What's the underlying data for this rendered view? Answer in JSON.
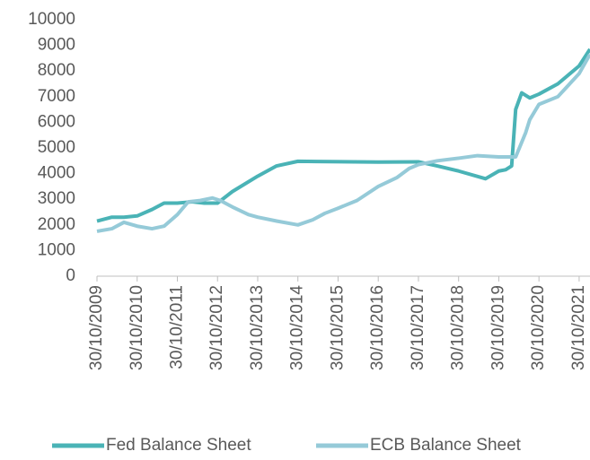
{
  "chart_data": {
    "type": "line",
    "xlim": [
      2009.83,
      2022.1
    ],
    "xticks": [
      {
        "value": 2009.83,
        "label": "30/10/2009"
      },
      {
        "value": 2010.83,
        "label": "30/10/2010"
      },
      {
        "value": 2011.83,
        "label": "30/10/2011"
      },
      {
        "value": 2012.83,
        "label": "30/10/2012"
      },
      {
        "value": 2013.83,
        "label": "30/10/2013"
      },
      {
        "value": 2014.83,
        "label": "30/10/2014"
      },
      {
        "value": 2015.83,
        "label": "30/10/2015"
      },
      {
        "value": 2016.83,
        "label": "30/10/2016"
      },
      {
        "value": 2017.83,
        "label": "30/10/2017"
      },
      {
        "value": 2018.83,
        "label": "30/10/2018"
      },
      {
        "value": 2019.83,
        "label": "30/10/2019"
      },
      {
        "value": 2020.83,
        "label": "30/10/2020"
      },
      {
        "value": 2021.83,
        "label": "30/10/2021"
      }
    ],
    "ylim": [
      0,
      10000
    ],
    "yticks": [
      0,
      1000,
      2000,
      3000,
      4000,
      5000,
      6000,
      7000,
      8000,
      9000,
      10000
    ],
    "legend": "bottom",
    "series": [
      {
        "name": "Fed Balance Sheet",
        "color": "#4ab3b6",
        "x": [
          2009.83,
          2010.2,
          2010.5,
          2010.83,
          2011.2,
          2011.5,
          2011.83,
          2012.2,
          2012.5,
          2012.83,
          2013.2,
          2013.83,
          2014.3,
          2014.83,
          2015.3,
          2016.83,
          2017.83,
          2018.3,
          2018.83,
          2019.5,
          2019.83,
          2020.0,
          2020.15,
          2020.25,
          2020.4,
          2020.6,
          2020.83,
          2021.3,
          2021.83,
          2022.1
        ],
        "values": [
          2150,
          2300,
          2300,
          2350,
          2600,
          2850,
          2850,
          2900,
          2850,
          2850,
          3300,
          3900,
          4300,
          4480,
          4470,
          4450,
          4460,
          4300,
          4100,
          3800,
          4100,
          4150,
          4300,
          6500,
          7150,
          6950,
          7100,
          7500,
          8200,
          8850
        ]
      },
      {
        "name": "ECB Balance Sheet",
        "color": "#95cad8",
        "x": [
          2009.83,
          2010.2,
          2010.5,
          2010.83,
          2011.2,
          2011.5,
          2011.83,
          2012.1,
          2012.4,
          2012.7,
          2012.9,
          2013.2,
          2013.6,
          2013.83,
          2014.3,
          2014.83,
          2015.2,
          2015.5,
          2015.83,
          2016.3,
          2016.83,
          2017.3,
          2017.6,
          2017.83,
          2018.3,
          2018.83,
          2019.3,
          2019.83,
          2020.25,
          2020.5,
          2020.6,
          2020.83,
          2021.3,
          2021.83,
          2022.1
        ],
        "values": [
          1750,
          1850,
          2100,
          1950,
          1850,
          1950,
          2400,
          2900,
          2950,
          3050,
          2950,
          2700,
          2400,
          2300,
          2150,
          2000,
          2200,
          2450,
          2650,
          2950,
          3500,
          3850,
          4200,
          4350,
          4500,
          4600,
          4700,
          4650,
          4650,
          5600,
          6100,
          6700,
          7000,
          7900,
          8650
        ]
      }
    ]
  }
}
